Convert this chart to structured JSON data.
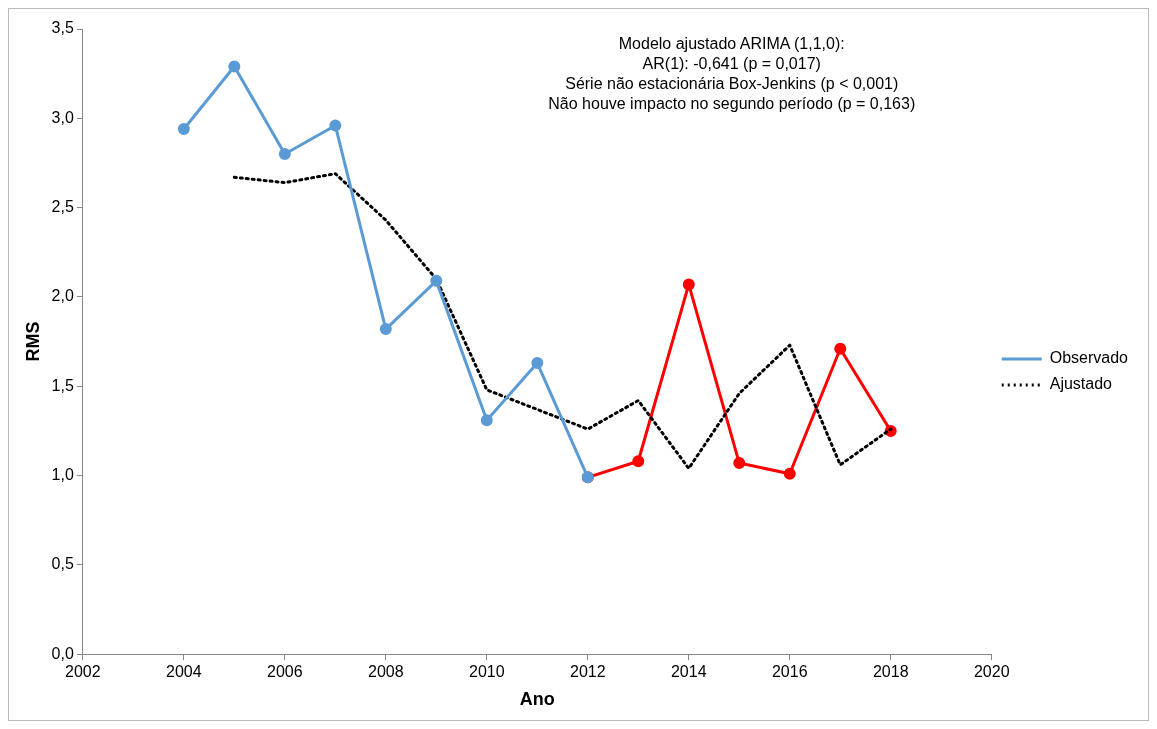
{
  "chart_data": {
    "type": "line",
    "xlabel": "Ano",
    "ylabel": "RMS",
    "annotations": [
      "Modelo ajustado ARIMA (1,1,0):",
      "AR(1): -0,641 (p = 0,017)",
      "Série não estacionária Box-Jenkins (p < 0,001)",
      "Não houve impacto no segundo período (p = 0,163)"
    ],
    "series": [
      {
        "name": "Observado",
        "color": "#5b9bd5",
        "marker": "circle",
        "line_style": "solid",
        "x": [
          2004,
          2005,
          2006,
          2007,
          2008,
          2009,
          2010,
          2011,
          2012
        ],
        "values": [
          2.94,
          3.29,
          2.8,
          2.96,
          1.82,
          2.09,
          1.31,
          1.63,
          0.99
        ]
      },
      {
        "name": "Ajustado",
        "color": "#000000",
        "marker": "none",
        "line_style": "dotted",
        "x": [
          2005,
          2006,
          2007,
          2008,
          2009,
          2010,
          2011,
          2012,
          2013,
          2014,
          2015,
          2016,
          2017,
          2018
        ],
        "values": [
          2.67,
          2.64,
          2.69,
          2.43,
          2.1,
          1.48,
          1.37,
          1.26,
          1.42,
          1.04,
          1.46,
          1.73,
          1.06,
          1.26
        ]
      },
      {
        "color": "#ff0000",
        "marker": "circle",
        "line_style": "solid",
        "x": [
          2012,
          2013,
          2014,
          2015,
          2016,
          2017,
          2018
        ],
        "values": [
          0.99,
          1.08,
          2.07,
          1.07,
          1.01,
          1.71,
          1.25
        ]
      }
    ],
    "xlim": [
      2002,
      2020
    ],
    "xticks": [
      2002,
      2004,
      2006,
      2008,
      2010,
      2012,
      2014,
      2016,
      2018,
      2020
    ],
    "ylim": [
      0,
      3.5
    ],
    "yticks": [
      {
        "value": 0,
        "label": "0,0"
      },
      {
        "value": 0.5,
        "label": "0,5"
      },
      {
        "value": 1,
        "label": "1,0"
      },
      {
        "value": 1.5,
        "label": "1,5"
      },
      {
        "value": 2,
        "label": "2,0"
      },
      {
        "value": 2.5,
        "label": "2,5"
      },
      {
        "value": 3,
        "label": "3,0"
      },
      {
        "value": 3.5,
        "label": "3,5"
      }
    ],
    "grid": false,
    "legend": "right"
  }
}
